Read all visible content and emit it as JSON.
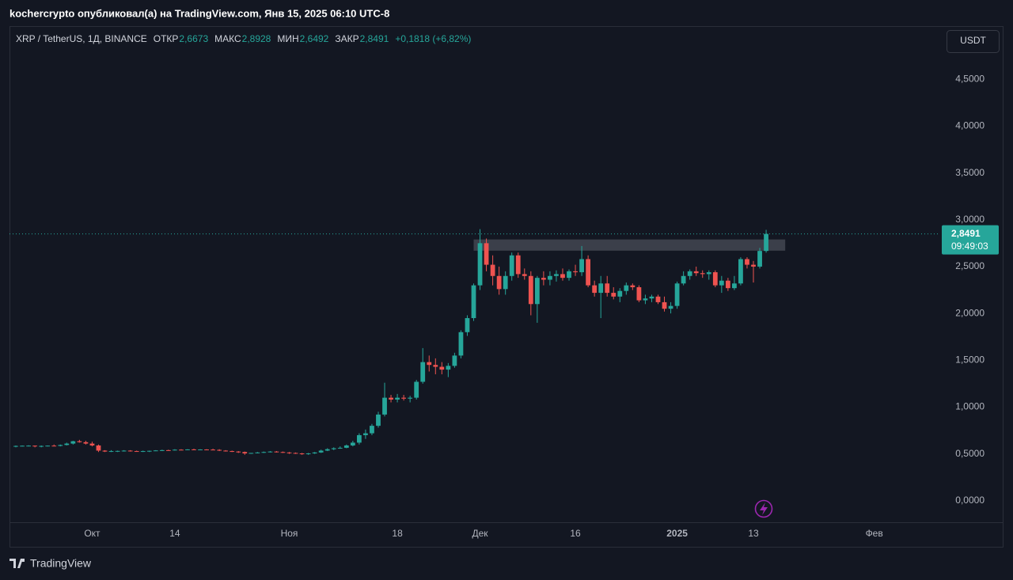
{
  "header": {
    "publisher": "kochercrypto опубликовал(а) на TradingView.com, Янв 15, 2025 06:10 UTC-8"
  },
  "footer": {
    "brand": "TradingView"
  },
  "chart_data": {
    "type": "candlestick",
    "symbol": "XRP / TetherUS, 1Д, BINANCE",
    "ohlc_legend": {
      "names": [
        "ОТКР",
        "МАКС",
        "МИН",
        "ЗАКР"
      ],
      "values": [
        2.6673,
        2.8928,
        2.6492,
        2.8491
      ],
      "value_labels": [
        "2,6673",
        "2,8928",
        "2,6492",
        "2,8491"
      ]
    },
    "change": {
      "values": [
        0.1818,
        6.82
      ],
      "label": "+0,1818 (+6,82%)"
    },
    "currency": "USDT",
    "countdown": "09:49:03",
    "up_color": "#26a69a",
    "down_color": "#ef5350",
    "grid": false,
    "x": [
      "2024-09-19",
      "2024-09-20",
      "2024-09-21",
      "2024-09-22",
      "2024-09-23",
      "2024-09-24",
      "2024-09-25",
      "2024-09-26",
      "2024-09-27",
      "2024-09-28",
      "2024-09-29",
      "2024-09-30",
      "2024-10-01",
      "2024-10-02",
      "2024-10-03",
      "2024-10-04",
      "2024-10-05",
      "2024-10-06",
      "2024-10-07",
      "2024-10-08",
      "2024-10-09",
      "2024-10-10",
      "2024-10-11",
      "2024-10-12",
      "2024-10-13",
      "2024-10-14",
      "2024-10-15",
      "2024-10-16",
      "2024-10-17",
      "2024-10-18",
      "2024-10-19",
      "2024-10-20",
      "2024-10-21",
      "2024-10-22",
      "2024-10-23",
      "2024-10-24",
      "2024-10-25",
      "2024-10-26",
      "2024-10-27",
      "2024-10-28",
      "2024-10-29",
      "2024-10-30",
      "2024-10-31",
      "2024-11-01",
      "2024-11-02",
      "2024-11-03",
      "2024-11-04",
      "2024-11-05",
      "2024-11-06",
      "2024-11-07",
      "2024-11-08",
      "2024-11-09",
      "2024-11-10",
      "2024-11-11",
      "2024-11-12",
      "2024-11-13",
      "2024-11-14",
      "2024-11-15",
      "2024-11-16",
      "2024-11-17",
      "2024-11-18",
      "2024-11-19",
      "2024-11-20",
      "2024-11-21",
      "2024-11-22",
      "2024-11-23",
      "2024-11-24",
      "2024-11-25",
      "2024-11-26",
      "2024-11-27",
      "2024-11-28",
      "2024-11-29",
      "2024-11-30",
      "2024-12-01",
      "2024-12-02",
      "2024-12-03",
      "2024-12-04",
      "2024-12-05",
      "2024-12-06",
      "2024-12-07",
      "2024-12-08",
      "2024-12-09",
      "2024-12-10",
      "2024-12-11",
      "2024-12-12",
      "2024-12-13",
      "2024-12-14",
      "2024-12-15",
      "2024-12-16",
      "2024-12-17",
      "2024-12-18",
      "2024-12-19",
      "2024-12-20",
      "2024-12-21",
      "2024-12-22",
      "2024-12-23",
      "2024-12-24",
      "2024-12-25",
      "2024-12-26",
      "2024-12-27",
      "2024-12-28",
      "2024-12-29",
      "2024-12-30",
      "2024-12-31",
      "2025-01-01",
      "2025-01-02",
      "2025-01-03",
      "2025-01-04",
      "2025-01-05",
      "2025-01-06",
      "2025-01-07",
      "2025-01-08",
      "2025-01-09",
      "2025-01-10",
      "2025-01-11",
      "2025-01-12",
      "2025-01-13",
      "2025-01-14",
      "2025-01-15"
    ],
    "open": [
      0.58,
      0.585,
      0.587,
      0.588,
      0.58,
      0.585,
      0.588,
      0.585,
      0.595,
      0.61,
      0.635,
      0.625,
      0.61,
      0.59,
      0.535,
      0.525,
      0.53,
      0.532,
      0.535,
      0.53,
      0.528,
      0.53,
      0.533,
      0.537,
      0.54,
      0.538,
      0.545,
      0.542,
      0.548,
      0.545,
      0.547,
      0.546,
      0.543,
      0.535,
      0.53,
      0.525,
      0.52,
      0.505,
      0.51,
      0.515,
      0.52,
      0.525,
      0.52,
      0.515,
      0.51,
      0.505,
      0.5,
      0.505,
      0.515,
      0.535,
      0.55,
      0.56,
      0.565,
      0.59,
      0.62,
      0.7,
      0.72,
      0.8,
      0.92,
      1.1,
      1.08,
      1.1,
      1.09,
      1.1,
      1.27,
      1.48,
      1.45,
      1.43,
      1.4,
      1.44,
      1.55,
      1.8,
      1.95,
      2.3,
      2.75,
      2.52,
      2.4,
      2.26,
      2.4,
      2.62,
      2.42,
      2.4,
      2.1,
      2.38,
      2.36,
      2.4,
      2.42,
      2.38,
      2.45,
      2.44,
      2.58,
      2.3,
      2.22,
      2.32,
      2.22,
      2.18,
      2.24,
      2.3,
      2.28,
      2.14,
      2.16,
      2.18,
      2.12,
      2.05,
      2.08,
      2.32,
      2.4,
      2.45,
      2.43,
      2.42,
      2.44,
      2.3,
      2.35,
      2.27,
      2.32,
      2.58,
      2.52,
      2.5,
      2.6673
    ],
    "high": [
      0.59,
      0.59,
      0.592,
      0.59,
      0.59,
      0.59,
      0.6,
      0.6,
      0.62,
      0.64,
      0.65,
      0.64,
      0.63,
      0.6,
      0.54,
      0.54,
      0.535,
      0.54,
      0.54,
      0.535,
      0.535,
      0.535,
      0.54,
      0.545,
      0.545,
      0.55,
      0.55,
      0.55,
      0.555,
      0.55,
      0.55,
      0.555,
      0.55,
      0.54,
      0.535,
      0.53,
      0.525,
      0.51,
      0.52,
      0.525,
      0.53,
      0.53,
      0.525,
      0.52,
      0.515,
      0.51,
      0.51,
      0.52,
      0.545,
      0.56,
      0.57,
      0.58,
      0.6,
      0.64,
      0.72,
      0.76,
      0.82,
      0.95,
      1.26,
      1.13,
      1.14,
      1.13,
      1.12,
      1.29,
      1.63,
      1.55,
      1.52,
      1.48,
      1.47,
      1.58,
      1.82,
      1.98,
      2.32,
      2.9,
      2.8,
      2.62,
      2.5,
      2.45,
      2.65,
      2.65,
      2.48,
      2.45,
      2.4,
      2.45,
      2.45,
      2.46,
      2.48,
      2.47,
      2.52,
      2.72,
      2.62,
      2.35,
      2.4,
      2.4,
      2.28,
      2.27,
      2.33,
      2.32,
      2.3,
      2.2,
      2.2,
      2.2,
      2.18,
      2.12,
      2.34,
      2.45,
      2.47,
      2.5,
      2.46,
      2.46,
      2.46,
      2.4,
      2.38,
      2.4,
      2.6,
      2.6,
      2.56,
      2.7,
      2.8928
    ],
    "low": [
      0.57,
      0.58,
      0.58,
      0.57,
      0.57,
      0.58,
      0.58,
      0.58,
      0.59,
      0.6,
      0.62,
      0.6,
      0.58,
      0.52,
      0.52,
      0.52,
      0.52,
      0.525,
      0.525,
      0.525,
      0.52,
      0.52,
      0.53,
      0.53,
      0.535,
      0.535,
      0.54,
      0.54,
      0.54,
      0.54,
      0.54,
      0.54,
      0.53,
      0.525,
      0.52,
      0.51,
      0.49,
      0.5,
      0.505,
      0.51,
      0.515,
      0.515,
      0.51,
      0.5,
      0.5,
      0.49,
      0.49,
      0.5,
      0.51,
      0.53,
      0.54,
      0.555,
      0.56,
      0.58,
      0.6,
      0.66,
      0.7,
      0.78,
      0.9,
      1.05,
      1.05,
      1.07,
      1.05,
      1.08,
      1.25,
      1.38,
      1.35,
      1.35,
      1.32,
      1.42,
      1.52,
      1.76,
      1.92,
      2.25,
      2.45,
      2.3,
      2.2,
      2.2,
      2.35,
      2.38,
      2.36,
      1.98,
      1.9,
      2.3,
      2.3,
      2.34,
      2.35,
      2.35,
      2.4,
      2.4,
      2.28,
      2.18,
      1.95,
      2.18,
      2.15,
      2.12,
      2.2,
      2.25,
      2.12,
      2.1,
      2.12,
      2.1,
      2.02,
      2.0,
      2.05,
      2.3,
      2.36,
      2.4,
      2.38,
      2.36,
      2.28,
      2.22,
      2.24,
      2.25,
      2.3,
      2.48,
      2.33,
      2.48,
      2.6492
    ],
    "close": [
      0.585,
      0.587,
      0.588,
      0.58,
      0.585,
      0.588,
      0.585,
      0.595,
      0.61,
      0.635,
      0.625,
      0.61,
      0.59,
      0.535,
      0.525,
      0.53,
      0.532,
      0.535,
      0.53,
      0.528,
      0.53,
      0.533,
      0.537,
      0.54,
      0.538,
      0.545,
      0.542,
      0.548,
      0.545,
      0.547,
      0.546,
      0.543,
      0.535,
      0.53,
      0.525,
      0.52,
      0.505,
      0.51,
      0.515,
      0.52,
      0.525,
      0.52,
      0.515,
      0.51,
      0.505,
      0.5,
      0.505,
      0.515,
      0.535,
      0.55,
      0.56,
      0.565,
      0.59,
      0.62,
      0.7,
      0.72,
      0.8,
      0.92,
      1.1,
      1.08,
      1.1,
      1.09,
      1.1,
      1.27,
      1.48,
      1.45,
      1.43,
      1.4,
      1.44,
      1.55,
      1.8,
      1.95,
      2.3,
      2.75,
      2.52,
      2.4,
      2.26,
      2.4,
      2.62,
      2.42,
      2.4,
      2.1,
      2.38,
      2.36,
      2.4,
      2.42,
      2.38,
      2.45,
      2.44,
      2.58,
      2.3,
      2.22,
      2.32,
      2.22,
      2.18,
      2.24,
      2.3,
      2.28,
      2.14,
      2.16,
      2.18,
      2.12,
      2.05,
      2.08,
      2.32,
      2.4,
      2.45,
      2.43,
      2.42,
      2.44,
      2.3,
      2.35,
      2.27,
      2.32,
      2.58,
      2.52,
      2.5,
      2.6673,
      2.8491
    ],
    "zone": {
      "y": [
        2.67,
        2.79
      ],
      "x": [
        "2024-11-30",
        "2025-01-18"
      ],
      "color": "#5d606b"
    },
    "xlim": [
      "2024-09-18",
      "2025-02-11"
    ],
    "xticks": [
      {
        "value": "2024-10-01",
        "label": "Окт"
      },
      {
        "value": "2024-10-14",
        "label": "14"
      },
      {
        "value": "2024-11-01",
        "label": "Ноя"
      },
      {
        "value": "2024-11-18",
        "label": "18"
      },
      {
        "value": "2024-12-01",
        "label": "Дек"
      },
      {
        "value": "2024-12-16",
        "label": "16"
      },
      {
        "value": "2025-01-01",
        "label": "2025"
      },
      {
        "value": "2025-01-13",
        "label": "13"
      },
      {
        "value": "2025-02-01",
        "label": "Фев"
      }
    ],
    "ylim": [
      -0.23,
      5.06
    ],
    "yticks": [
      {
        "value": 0,
        "label": "0,0000"
      },
      {
        "value": 0.5,
        "label": "0,5000"
      },
      {
        "value": 1,
        "label": "1,0000"
      },
      {
        "value": 1.5,
        "label": "1,5000"
      },
      {
        "value": 2,
        "label": "2,0000"
      },
      {
        "value": 2.5,
        "label": "2,5000"
      },
      {
        "value": 3,
        "label": "3,0000"
      },
      {
        "value": 3.5,
        "label": "3,5000"
      },
      {
        "value": 4,
        "label": "4,0000"
      },
      {
        "value": 4.5,
        "label": "4,5000"
      }
    ]
  }
}
